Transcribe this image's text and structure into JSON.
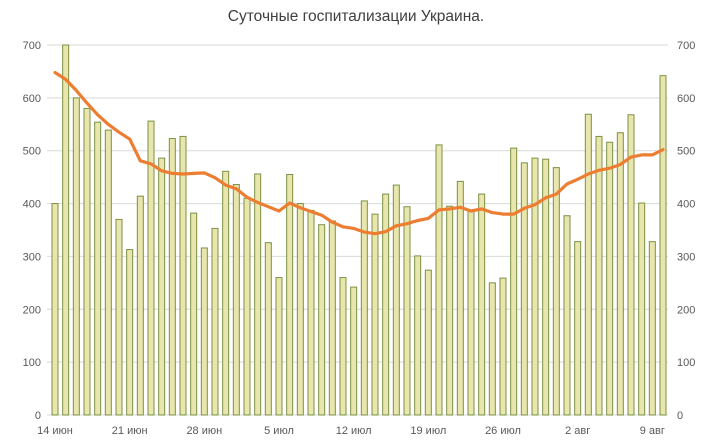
{
  "chart_data": {
    "type": "bar",
    "title": "Суточные госпитализации Украина.",
    "xlabel": "",
    "ylabel": "",
    "ylim": [
      0,
      700
    ],
    "y_ticks": [
      0,
      100,
      200,
      300,
      400,
      500,
      600,
      700
    ],
    "y_axis_sides": "both",
    "grid": "horizontal",
    "legend": "none",
    "x": [
      "14 июн",
      "15 июн",
      "16 июн",
      "17 июн",
      "18 июн",
      "19 июн",
      "20 июн",
      "21 июн",
      "22 июн",
      "23 июн",
      "24 июн",
      "25 июн",
      "26 июн",
      "27 июн",
      "28 июн",
      "29 июн",
      "30 июн",
      "1 июл",
      "2 июл",
      "3 июл",
      "4 июл",
      "5 июл",
      "6 июл",
      "7 июл",
      "8 июл",
      "9 июл",
      "10 июл",
      "11 июл",
      "12 июл",
      "13 июл",
      "14 июл",
      "15 июл",
      "16 июл",
      "17 июл",
      "18 июл",
      "19 июл",
      "20 июл",
      "21 июл",
      "22 июл",
      "23 июл",
      "24 июл",
      "25 июл",
      "26 июл",
      "27 июл",
      "28 июл",
      "29 июл",
      "30 июл",
      "31 июл",
      "1 авг",
      "2 авг",
      "3 авг",
      "4 авг",
      "5 авг",
      "6 авг",
      "7 авг",
      "8 авг",
      "9 авг",
      "10 авг"
    ],
    "x_tick_labels": [
      "14 июн",
      "21 июн",
      "28 июн",
      "5 июл",
      "12 июл",
      "19 июл",
      "26 июл",
      "2 авг",
      "9 авг"
    ],
    "x_tick_positions": [
      0,
      7,
      14,
      21,
      28,
      35,
      42,
      49,
      56
    ],
    "series": [
      {
        "id": "bars",
        "kind": "bar",
        "fill": "#e9e6ad",
        "stroke": "#7c9144",
        "values": [
          400,
          700,
          600,
          580,
          554,
          539,
          370,
          313,
          414,
          556,
          486,
          523,
          527,
          382,
          316,
          353,
          461,
          436,
          410,
          456,
          326,
          260,
          455,
          400,
          387,
          360,
          367,
          260,
          242,
          405,
          380,
          418,
          435,
          394,
          301,
          274,
          511,
          395,
          442,
          388,
          418,
          250,
          259,
          505,
          477,
          486,
          484,
          468,
          377,
          328,
          569,
          527,
          516,
          534,
          568,
          401,
          328,
          642
        ]
      },
      {
        "id": "ma_line",
        "kind": "line",
        "color": "#ed7d31",
        "values": [
          648,
          635,
          614,
          590,
          568,
          550,
          535,
          522,
          481,
          475,
          462,
          457,
          456,
          457,
          458,
          449,
          435,
          428,
          412,
          402,
          394,
          386,
          401,
          392,
          385,
          378,
          365,
          356,
          353,
          346,
          343,
          347,
          358,
          362,
          368,
          372,
          388,
          390,
          393,
          386,
          390,
          383,
          380,
          380,
          391,
          398,
          411,
          418,
          437,
          446,
          456,
          463,
          467,
          474,
          488,
          492,
          492,
          502
        ]
      }
    ],
    "colors": {
      "title": "#404040",
      "axis_labels": "#595959",
      "gridline": "#d9d9d9",
      "background": "#ffffff"
    }
  }
}
